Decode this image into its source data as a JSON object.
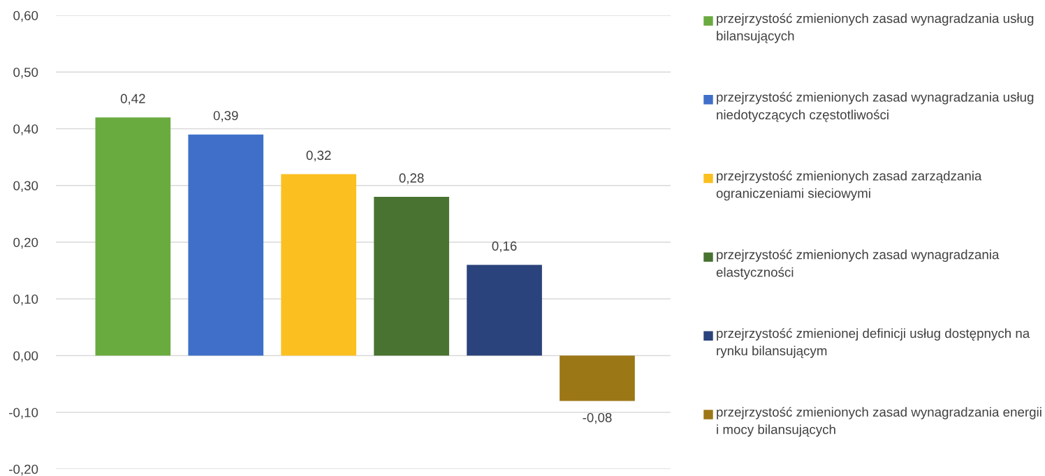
{
  "chart_data": {
    "type": "bar",
    "categories": [
      null,
      null,
      null,
      null,
      null,
      null
    ],
    "series": [
      {
        "name": "przejrzystość zmienionych zasad wynagradzania usług bilansujących",
        "color": "#6aab40",
        "values": [
          0.42,
          null,
          null,
          null,
          null,
          null
        ],
        "value_labels": [
          "0,42",
          null,
          null,
          null,
          null,
          null
        ]
      },
      {
        "name": "przejrzystość zmienionych zasad wynagradzania usług niedotyczących częstotliwości",
        "color": "#3f6fc9",
        "values": [
          null,
          0.39,
          null,
          null,
          null,
          null
        ],
        "value_labels": [
          null,
          "0,39",
          null,
          null,
          null,
          null
        ]
      },
      {
        "name": "przejrzystość zmienionych zasad zarządzania ograniczeniami sieciowymi",
        "color": "#fbc020",
        "values": [
          null,
          null,
          0.32,
          null,
          null,
          null
        ],
        "value_labels": [
          null,
          null,
          "0,32",
          null,
          null,
          null
        ]
      },
      {
        "name": "przejrzystość zmienionych zasad wynagradzania elastyczności",
        "color": "#497331",
        "values": [
          null,
          null,
          null,
          0.28,
          null,
          null
        ],
        "value_labels": [
          null,
          null,
          null,
          "0,28",
          null,
          null
        ]
      },
      {
        "name": "przejrzystość zmienionej definicji usług dostępnych na rynku bilansującym",
        "color": "#2b437c",
        "values": [
          null,
          null,
          null,
          null,
          0.16,
          null
        ],
        "value_labels": [
          null,
          null,
          null,
          null,
          "0,16",
          null
        ]
      },
      {
        "name": "przejrzystość zmienionych zasad wynagradzania energii i mocy bilansujących",
        "color": "#9c7716",
        "values": [
          null,
          null,
          null,
          null,
          null,
          -0.08
        ],
        "value_labels": [
          null,
          null,
          null,
          null,
          null,
          "-0,08"
        ]
      }
    ],
    "ylim": [
      -0.2,
      0.6
    ],
    "yticks": [
      {
        "value": -0.2,
        "label": "-0,20"
      },
      {
        "value": -0.1,
        "label": "-0,10"
      },
      {
        "value": 0,
        "label": "0,00"
      },
      {
        "value": 0.1,
        "label": "0,10"
      },
      {
        "value": 0.2,
        "label": "0,20"
      },
      {
        "value": 0.3,
        "label": "0,30"
      },
      {
        "value": 0.4,
        "label": "0,40"
      },
      {
        "value": 0.5,
        "label": "0,50"
      },
      {
        "value": 0.6,
        "label": "0,60"
      }
    ],
    "grid": "y",
    "legend": "right"
  }
}
